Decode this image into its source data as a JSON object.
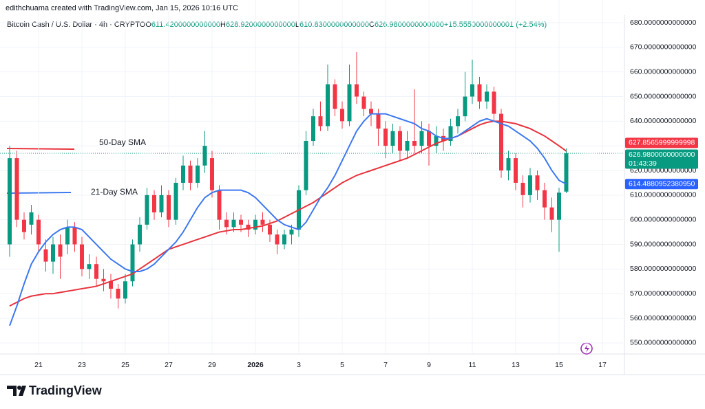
{
  "footer_top": "edithchuama created with TradingView.com, Jan 15, 2026 10:16 UTC",
  "header": {
    "symbol": "Bitcoin Cash / U.S. Dollar · 4h · CRYPTO",
    "ohlc": [
      {
        "label": "O",
        "value": "611.4200000000000"
      },
      {
        "label": "H",
        "value": "628.9200000000000"
      },
      {
        "label": "L",
        "value": "610.8300000000000"
      },
      {
        "label": "C",
        "value": "626.9800000000000"
      }
    ],
    "change": "+15.5550000000001 (+2.54%)"
  },
  "brand": "TradingView",
  "chart_data": {
    "type": "candlestick",
    "up_color": "#089981",
    "down_color": "#f23645",
    "categories": [
      null,
      null,
      null,
      null,
      "21",
      null,
      null,
      null,
      null,
      null,
      "23",
      null,
      null,
      null,
      null,
      null,
      "25",
      null,
      null,
      null,
      null,
      null,
      "27",
      null,
      null,
      null,
      null,
      null,
      "29",
      null,
      null,
      null,
      null,
      null,
      "2026",
      null,
      null,
      null,
      null,
      null,
      "3",
      null,
      null,
      null,
      null,
      null,
      "5",
      null,
      null,
      null,
      null,
      null,
      "7",
      null,
      null,
      null,
      null,
      null,
      "9",
      null,
      null,
      null,
      null,
      null,
      "11",
      null,
      null,
      null,
      null,
      null,
      "13",
      null,
      null,
      null,
      null,
      null,
      "15",
      null,
      null,
      null,
      null,
      null,
      "17"
    ],
    "open": [
      590,
      625,
      600,
      598,
      600,
      588,
      583,
      590,
      590,
      597,
      590,
      580,
      582,
      576,
      575,
      572,
      568,
      575,
      590,
      598,
      610,
      603,
      610,
      600,
      615,
      622,
      615,
      622,
      625,
      612,
      600,
      597,
      600,
      598,
      596,
      600,
      598,
      594,
      590,
      594,
      596,
      612,
      632,
      642,
      638,
      655,
      645,
      640,
      655,
      650,
      645,
      643,
      637,
      630,
      636,
      628,
      632,
      630,
      636,
      630,
      634,
      632,
      638,
      642,
      650,
      655,
      648,
      652,
      643,
      620,
      625,
      615,
      610,
      618,
      612,
      605,
      600,
      611.42,
      null,
      null,
      null,
      null,
      null
    ],
    "high": [
      630,
      628,
      603,
      606,
      602,
      592,
      593,
      594,
      600,
      599,
      593,
      586,
      585,
      580,
      578,
      574,
      578,
      592,
      601,
      613,
      612,
      614,
      612,
      617,
      626,
      624,
      625,
      636,
      628,
      614,
      603,
      603,
      602,
      600,
      602,
      603,
      600,
      596,
      596,
      598,
      614,
      636,
      645,
      648,
      663,
      657,
      648,
      663,
      668,
      652,
      648,
      645,
      640,
      639,
      638,
      636,
      653,
      640,
      639,
      638,
      637,
      641,
      645,
      660,
      665,
      658,
      655,
      654,
      645,
      628,
      627,
      618,
      621,
      620,
      615,
      609,
      613,
      628.92,
      null,
      null,
      null,
      null,
      null
    ],
    "low": [
      585,
      597,
      592,
      594,
      587,
      579,
      578,
      576,
      586,
      587,
      577,
      576,
      573,
      571,
      568,
      564,
      566,
      573,
      587,
      596,
      600,
      601,
      597,
      598,
      612,
      612,
      613,
      619,
      609,
      596,
      594,
      595,
      595,
      593,
      594,
      595,
      591,
      586,
      588,
      590,
      593,
      610,
      630,
      636,
      636,
      642,
      637,
      638,
      647,
      642,
      638,
      630,
      625,
      627,
      624,
      625,
      627,
      627,
      622,
      627,
      628,
      630,
      635,
      640,
      647,
      645,
      645,
      640,
      617,
      616,
      612,
      605,
      607,
      608,
      600,
      595,
      587,
      610.83,
      null,
      null,
      null,
      null,
      null
    ],
    "close": [
      625,
      600,
      595,
      603,
      590,
      583,
      590,
      585,
      597,
      590,
      580,
      582,
      576,
      575,
      572,
      568,
      575,
      590,
      598,
      610,
      603,
      610,
      600,
      615,
      622,
      615,
      622,
      630,
      612,
      600,
      597,
      600,
      598,
      596,
      600,
      598,
      594,
      590,
      594,
      596,
      612,
      632,
      642,
      638,
      655,
      645,
      640,
      655,
      650,
      645,
      643,
      637,
      630,
      636,
      628,
      632,
      630,
      636,
      630,
      634,
      632,
      638,
      642,
      650,
      655,
      648,
      652,
      643,
      620,
      625,
      615,
      610,
      618,
      612,
      605,
      600,
      611,
      626.98,
      null,
      null,
      null,
      null,
      null
    ],
    "series": [
      {
        "name": "50-Day SMA",
        "color": "#e8323c",
        "values": [
          565,
          566.5,
          568,
          569,
          569.5,
          570,
          570,
          570.5,
          571,
          571.5,
          572,
          572.5,
          573,
          574,
          575,
          576,
          577,
          578,
          580,
          582,
          584,
          586,
          588,
          589,
          590,
          591,
          592,
          593,
          594,
          595,
          595.5,
          596,
          596,
          596.5,
          597,
          597.5,
          598.5,
          599.5,
          601,
          602.5,
          604,
          605.5,
          607,
          609,
          611,
          613,
          615,
          616.5,
          618,
          619,
          620,
          621,
          622,
          623,
          624,
          625,
          626.5,
          628,
          629.5,
          631,
          632,
          633,
          634,
          635.5,
          637,
          638.5,
          639.5,
          640,
          640,
          639.5,
          639,
          638,
          637,
          635.5,
          634,
          632,
          630,
          627.8566,
          null,
          null,
          null,
          null,
          null
        ]
      },
      {
        "name": "21-Day SMA",
        "color": "#3c78f0",
        "values": [
          557,
          565,
          574,
          582,
          587,
          591,
          594,
          596,
          597,
          597,
          596,
          593,
          590,
          587,
          584,
          582,
          580,
          579,
          579,
          580,
          582,
          585,
          588,
          591,
          595,
          600,
          605,
          609,
          611,
          612,
          612,
          612,
          612,
          611,
          609,
          606,
          603,
          600,
          598,
          597,
          596,
          599,
          604,
          609,
          613,
          618,
          624,
          630,
          636,
          640,
          643,
          643,
          643,
          642,
          641,
          640,
          639,
          637,
          636,
          634,
          633,
          633,
          634,
          636,
          638,
          640,
          641,
          640,
          639,
          638,
          636,
          634,
          632,
          629,
          625,
          620,
          616,
          614.488,
          null,
          null,
          null,
          null,
          null
        ]
      }
    ],
    "ylim": [
      545.5,
      689.2
    ],
    "yticks": [
      {
        "value": 550,
        "label": "550.0000000000000"
      },
      {
        "value": 560,
        "label": "560.0000000000000"
      },
      {
        "value": 570,
        "label": "570.0000000000000"
      },
      {
        "value": 580,
        "label": "580.0000000000000"
      },
      {
        "value": 590,
        "label": "590.0000000000000"
      },
      {
        "value": 600,
        "label": "600.0000000000000"
      },
      {
        "value": 610,
        "label": "610.0000000000000"
      },
      {
        "value": 620,
        "label": "620.0000000000000"
      },
      {
        "value": 630,
        "label": "630.0000000000000"
      },
      {
        "value": 640,
        "label": "640.0000000000000"
      },
      {
        "value": 650,
        "label": "650.0000000000000"
      },
      {
        "value": 660,
        "label": "660.0000000000000"
      },
      {
        "value": 670,
        "label": "670.0000000000000"
      },
      {
        "value": 680,
        "label": "680.0000000000000"
      }
    ],
    "price_labels": [
      {
        "value": 627.8565999999998,
        "label": "627.8565999999998",
        "color": "#f23645"
      },
      {
        "value": 626.98,
        "label": "626.9800000000000",
        "color": "#089981",
        "countdown": "01:43:39"
      },
      {
        "value": 614.488095238095,
        "label": "614.4880952380950",
        "color": "#2962ff"
      }
    ],
    "grid": true
  }
}
